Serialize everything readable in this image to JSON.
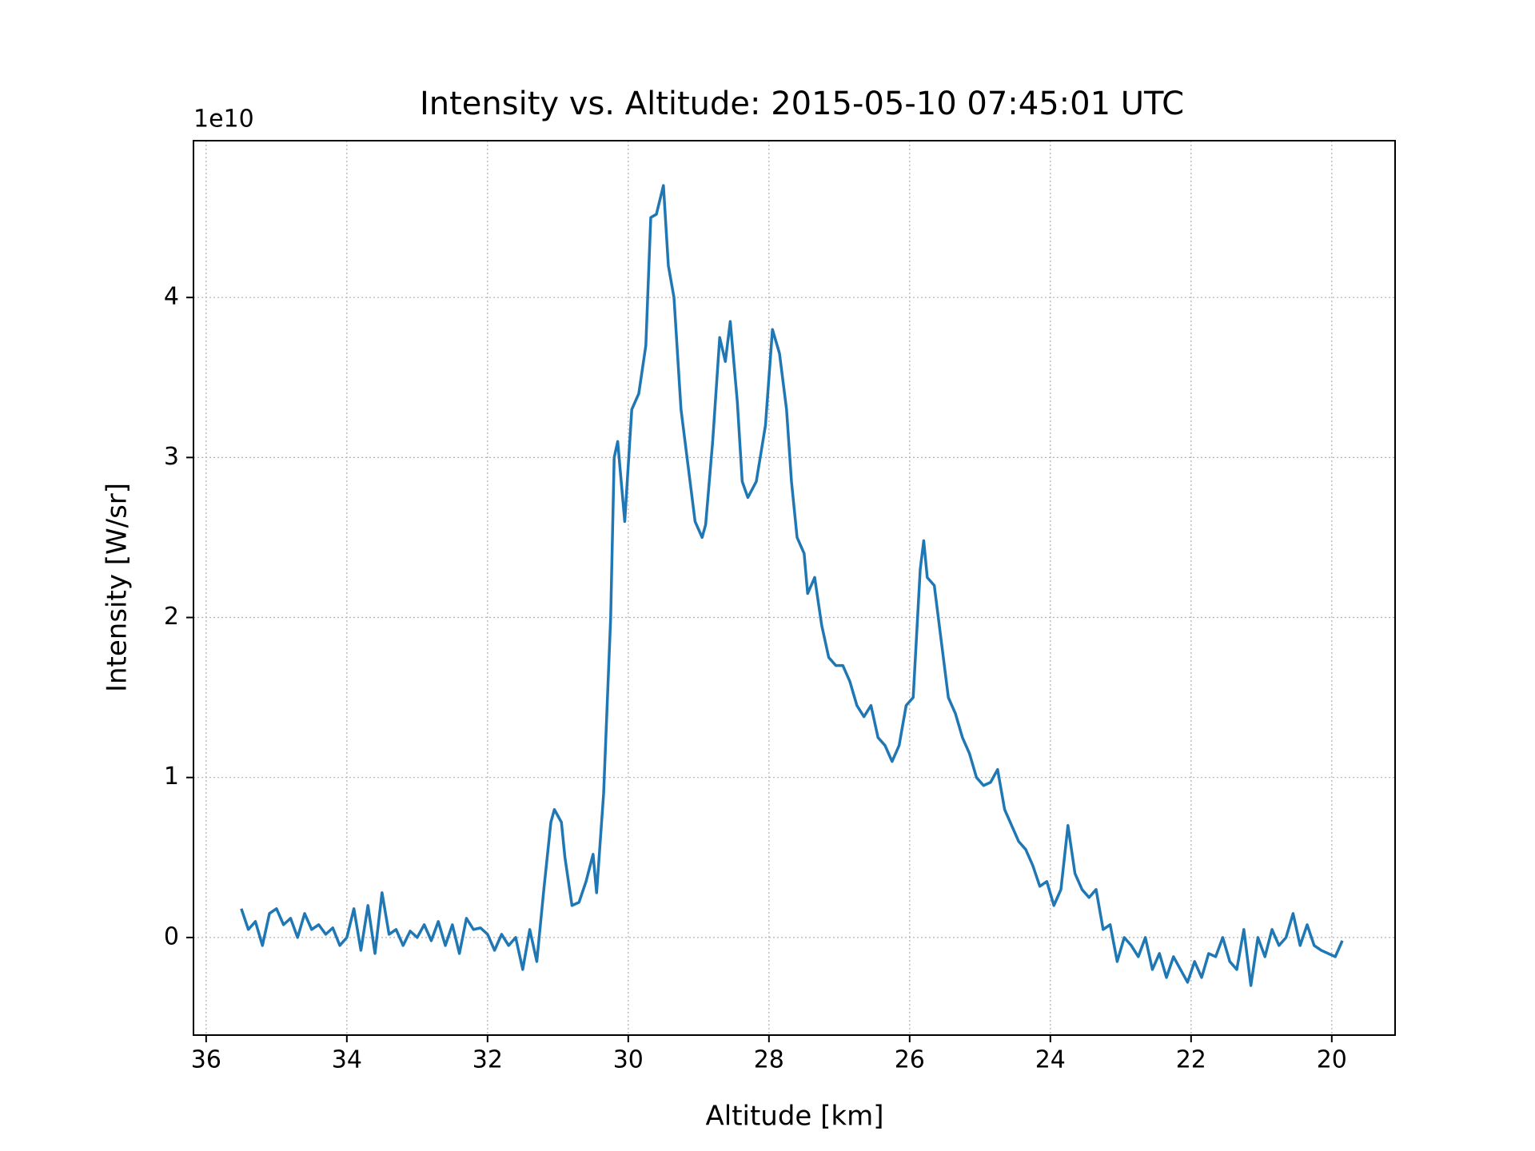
{
  "chart_data": {
    "type": "line",
    "title": "Intensity vs. Altitude: 2015-05-10 07:45:01 UTC",
    "x_label": "Altitude [km]",
    "y_label": "Intensity [W/sr]",
    "y_offset_label": "1e10",
    "color": "#1f77b4",
    "grid": true,
    "xlim": [
      36.18,
      19.1
    ],
    "ylim": [
      -0.61,
      4.98
    ],
    "xticks": [
      36,
      34,
      32,
      30,
      28,
      26,
      24,
      22,
      20
    ],
    "yticks": [
      0,
      1,
      2,
      3,
      4
    ],
    "x": [
      35.5,
      35.4,
      35.3,
      35.2,
      35.1,
      35.0,
      34.9,
      34.8,
      34.7,
      34.6,
      34.5,
      34.4,
      34.3,
      34.2,
      34.1,
      34.0,
      33.9,
      33.8,
      33.7,
      33.6,
      33.5,
      33.4,
      33.3,
      33.2,
      33.1,
      33.0,
      32.9,
      32.8,
      32.7,
      32.6,
      32.5,
      32.4,
      32.3,
      32.2,
      32.1,
      32.0,
      31.9,
      31.8,
      31.7,
      31.6,
      31.5,
      31.4,
      31.3,
      31.2,
      31.1,
      31.05,
      30.95,
      30.9,
      30.8,
      30.7,
      30.6,
      30.5,
      30.45,
      30.35,
      30.25,
      30.2,
      30.15,
      30.05,
      29.95,
      29.85,
      29.75,
      29.68,
      29.6,
      29.5,
      29.43,
      29.35,
      29.25,
      29.15,
      29.05,
      28.95,
      28.9,
      28.8,
      28.7,
      28.62,
      28.55,
      28.45,
      28.38,
      28.3,
      28.18,
      28.05,
      27.95,
      27.85,
      27.75,
      27.68,
      27.6,
      27.5,
      27.45,
      27.35,
      27.25,
      27.15,
      27.05,
      26.95,
      26.85,
      26.75,
      26.65,
      26.55,
      26.45,
      26.35,
      26.25,
      26.15,
      26.05,
      25.95,
      25.85,
      25.8,
      25.75,
      25.65,
      25.55,
      25.45,
      25.35,
      25.25,
      25.15,
      25.05,
      24.95,
      24.85,
      24.75,
      24.65,
      24.55,
      24.45,
      24.35,
      24.25,
      24.15,
      24.05,
      23.95,
      23.85,
      23.75,
      23.65,
      23.55,
      23.45,
      23.35,
      23.25,
      23.15,
      23.05,
      22.95,
      22.85,
      22.75,
      22.65,
      22.55,
      22.45,
      22.35,
      22.25,
      22.15,
      22.05,
      21.95,
      21.85,
      21.75,
      21.65,
      21.55,
      21.45,
      21.35,
      21.25,
      21.15,
      21.05,
      20.95,
      20.85,
      20.75,
      20.65,
      20.55,
      20.45,
      20.35,
      20.25,
      20.15,
      20.05,
      19.95,
      19.85
    ],
    "values": [
      0.18,
      0.05,
      0.1,
      -0.05,
      0.15,
      0.18,
      0.08,
      0.12,
      0.0,
      0.15,
      0.05,
      0.08,
      0.02,
      0.06,
      -0.05,
      0.0,
      0.18,
      -0.08,
      0.2,
      -0.1,
      0.28,
      0.02,
      0.05,
      -0.05,
      0.04,
      0.0,
      0.08,
      -0.02,
      0.1,
      -0.05,
      0.08,
      -0.1,
      0.12,
      0.05,
      0.06,
      0.02,
      -0.08,
      0.02,
      -0.05,
      0.0,
      -0.2,
      0.05,
      -0.15,
      0.3,
      0.72,
      0.8,
      0.72,
      0.5,
      0.2,
      0.22,
      0.35,
      0.52,
      0.28,
      0.9,
      2.0,
      3.0,
      3.1,
      2.6,
      3.3,
      3.4,
      3.7,
      4.5,
      4.52,
      4.7,
      4.2,
      4.0,
      3.3,
      2.95,
      2.6,
      2.5,
      2.58,
      3.1,
      3.75,
      3.6,
      3.85,
      3.35,
      2.85,
      2.75,
      2.85,
      3.2,
      3.8,
      3.65,
      3.3,
      2.85,
      2.5,
      2.4,
      2.15,
      2.25,
      1.95,
      1.75,
      1.7,
      1.7,
      1.6,
      1.45,
      1.38,
      1.45,
      1.25,
      1.2,
      1.1,
      1.2,
      1.45,
      1.5,
      2.3,
      2.48,
      2.25,
      2.2,
      1.85,
      1.5,
      1.4,
      1.25,
      1.15,
      1.0,
      0.95,
      0.97,
      1.05,
      0.8,
      0.7,
      0.6,
      0.55,
      0.45,
      0.32,
      0.35,
      0.2,
      0.3,
      0.7,
      0.4,
      0.3,
      0.25,
      0.3,
      0.05,
      0.08,
      -0.15,
      0.0,
      -0.05,
      -0.12,
      0.0,
      -0.2,
      -0.1,
      -0.25,
      -0.12,
      -0.2,
      -0.28,
      -0.15,
      -0.25,
      -0.1,
      -0.12,
      0.0,
      -0.15,
      -0.2,
      0.05,
      -0.3,
      0.0,
      -0.12,
      0.05,
      -0.05,
      0.0,
      0.15,
      -0.05,
      0.08,
      -0.05,
      -0.08,
      -0.1,
      -0.12,
      -0.02
    ]
  }
}
